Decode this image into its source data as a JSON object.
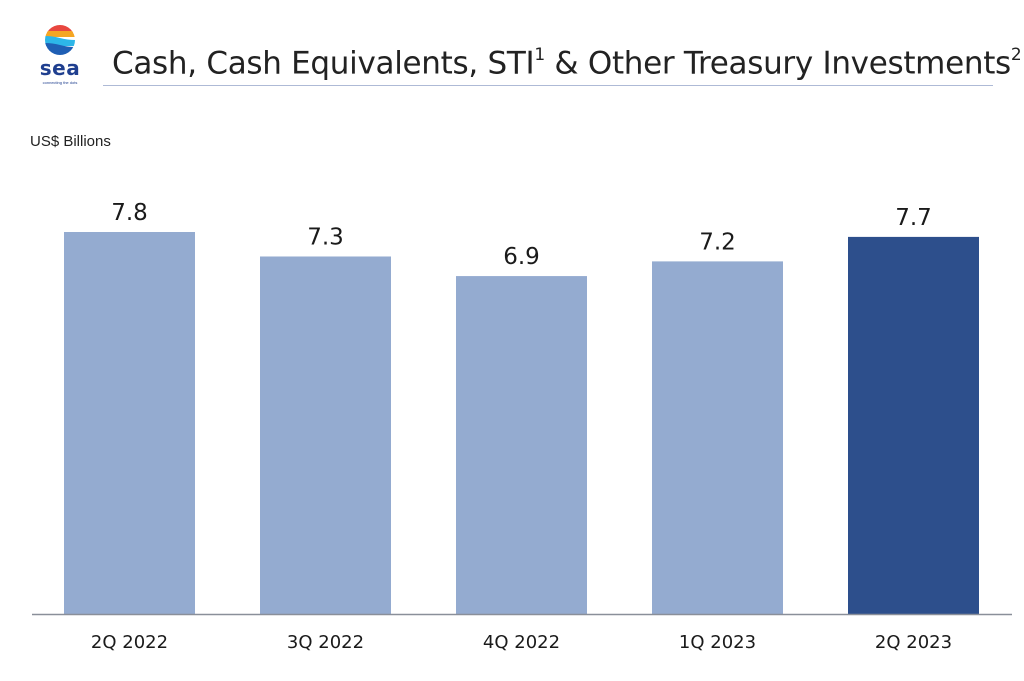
{
  "logo": {
    "wordmark": "sea",
    "tagline": "connecting the dots"
  },
  "title": {
    "text": "Cash, Cash Equivalents, STI",
    "footnote_1": "1",
    "text_2": " & Other Treasury Investments",
    "footnote_2": "2"
  },
  "unit_label": "US$ Billions",
  "colors": {
    "bar_default": "#94abd0",
    "bar_highlight": "#2d4f8c",
    "axis": "#8a8f99",
    "rule": "#aebad6"
  },
  "chart_data": {
    "type": "bar",
    "title": "Cash, Cash Equivalents, STI & Other Treasury Investments",
    "ylabel": "US$ Billions",
    "xlabel": "",
    "categories": [
      "2Q 2022",
      "3Q 2022",
      "4Q 2022",
      "1Q 2023",
      "2Q 2023"
    ],
    "values": [
      7.8,
      7.3,
      6.9,
      7.2,
      7.7
    ],
    "data_labels": [
      "7.8",
      "7.3",
      "6.9",
      "7.2",
      "7.7"
    ],
    "highlight_index": 4,
    "ylim": [
      0,
      7.8
    ],
    "grid": false,
    "legend": "none"
  }
}
